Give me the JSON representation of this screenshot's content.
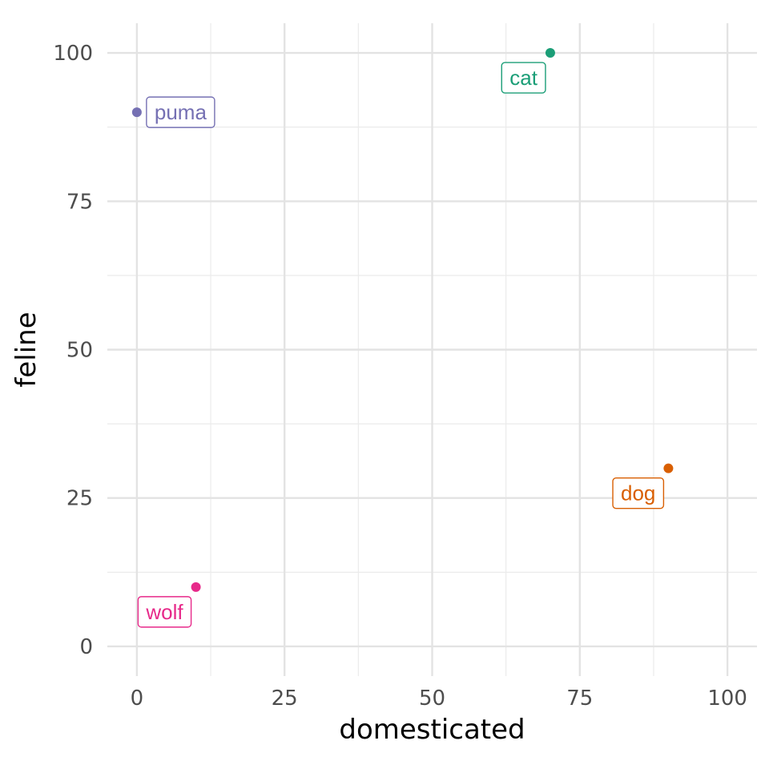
{
  "chart_data": {
    "type": "scatter",
    "xlabel": "domesticated",
    "ylabel": "feline",
    "xlim": [
      -5,
      105
    ],
    "ylim": [
      -5,
      105
    ],
    "x_ticks": [
      0,
      25,
      50,
      75,
      100
    ],
    "y_ticks": [
      0,
      25,
      50,
      75,
      100
    ],
    "x_tick_labels": [
      "0",
      "25",
      "50",
      "75",
      "100"
    ],
    "y_tick_labels": [
      "0",
      "25",
      "50",
      "75",
      "100"
    ],
    "grid": true,
    "legend": "none",
    "points": [
      {
        "label": "puma",
        "x": 0,
        "y": 90,
        "color": "#7570b3",
        "label_side": "right"
      },
      {
        "label": "cat",
        "x": 70,
        "y": 100,
        "color": "#1b9e77",
        "label_side": "below-left"
      },
      {
        "label": "dog",
        "x": 90,
        "y": 30,
        "color": "#d95f02",
        "label_side": "below-left"
      },
      {
        "label": "wolf",
        "x": 10,
        "y": 10,
        "color": "#e7298a",
        "label_side": "below-left"
      }
    ]
  }
}
